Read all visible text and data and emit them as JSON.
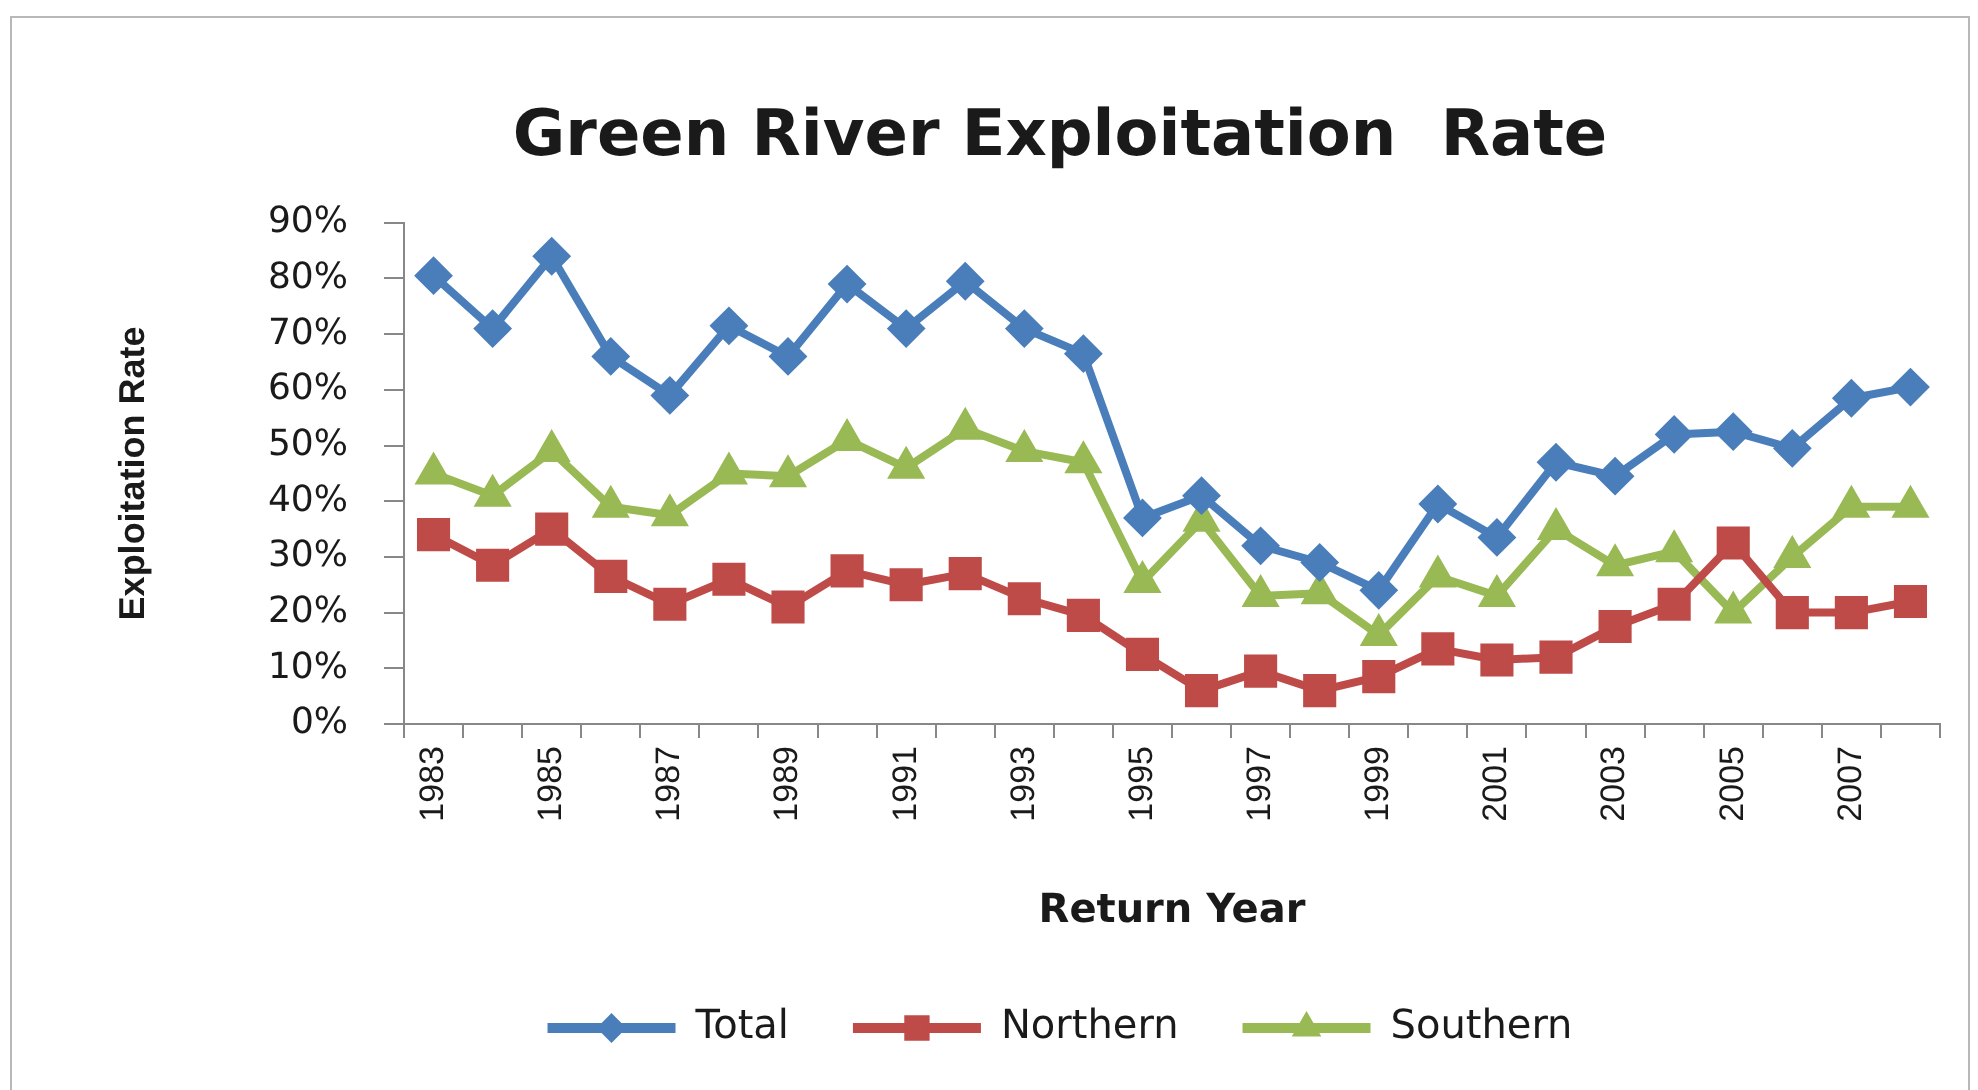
{
  "chart_data": {
    "type": "line",
    "title": "Green River Exploitation  Rate",
    "xlabel": "Return Year",
    "ylabel": "Exploitation Rate",
    "categories": [
      "1983",
      null,
      "1985",
      null,
      "1987",
      null,
      "1989",
      null,
      "1991",
      null,
      "1993",
      null,
      "1995",
      null,
      "1997",
      null,
      "1999",
      null,
      "2001",
      null,
      "2003",
      null,
      "2005",
      null,
      "2007",
      null
    ],
    "series": [
      {
        "name": "Total",
        "color": "#4a7ebb",
        "marker": "diamond",
        "values": [
          80.5,
          71,
          84,
          66,
          59,
          71.5,
          66,
          79,
          71,
          79.5,
          71,
          66.5,
          37,
          41,
          32,
          29,
          24,
          39.5,
          33.5,
          47,
          44.5,
          52,
          52.5,
          49.5,
          58.5,
          60.5
        ]
      },
      {
        "name": "Northern",
        "color": "#be4b48",
        "marker": "square",
        "values": [
          34,
          28.5,
          35,
          26.5,
          21.5,
          26,
          21,
          27.5,
          25,
          27,
          22.5,
          19.5,
          12.5,
          6,
          9.5,
          6,
          8.5,
          13.5,
          11.5,
          12,
          17.5,
          21.5,
          32.5,
          20,
          20,
          22
        ]
      },
      {
        "name": "Southern",
        "color": "#98b954",
        "marker": "triangle",
        "values": [
          45,
          41,
          49,
          39,
          37.5,
          45,
          44.5,
          51,
          46,
          53,
          49,
          47,
          25.5,
          36.5,
          23,
          23.5,
          16,
          26.5,
          23,
          35,
          28.5,
          31,
          20,
          30,
          39,
          39
        ]
      }
    ],
    "ylim": [
      0,
      90
    ],
    "yticks": [
      {
        "value": 0,
        "label": "0%"
      },
      {
        "value": 10,
        "label": "10%"
      },
      {
        "value": 20,
        "label": "20%"
      },
      {
        "value": 30,
        "label": "30%"
      },
      {
        "value": 40,
        "label": "40%"
      },
      {
        "value": 50,
        "label": "50%"
      },
      {
        "value": 60,
        "label": "60%"
      },
      {
        "value": 70,
        "label": "70%"
      },
      {
        "value": 80,
        "label": "80%"
      },
      {
        "value": 90,
        "label": "90%"
      }
    ],
    "grid": false,
    "legend": "bottom",
    "line_style": "solid"
  }
}
